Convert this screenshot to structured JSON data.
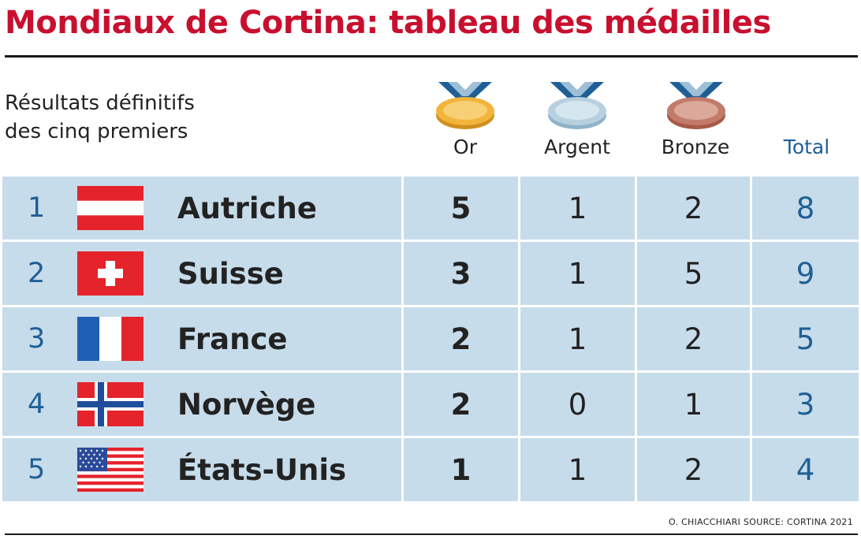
{
  "title": "Mondiaux de Cortina: tableau des médailles",
  "subtitle_lines": [
    "Résultats définitifs",
    "des cinq premiers"
  ],
  "colors": {
    "title": "#c8102e",
    "row_bg": "#c7dcea",
    "accent_blue": "#1f5f96"
  },
  "chart_data": {
    "type": "table",
    "columns": [
      "Or",
      "Argent",
      "Bronze",
      "Total"
    ],
    "rows": [
      {
        "rank": "1",
        "country": "Autriche",
        "flag": "austria-flag",
        "gold": "5",
        "silver": "1",
        "bronze": "2",
        "total": "8"
      },
      {
        "rank": "2",
        "country": "Suisse",
        "flag": "switzerland-flag",
        "gold": "3",
        "silver": "1",
        "bronze": "5",
        "total": "9"
      },
      {
        "rank": "3",
        "country": "France",
        "flag": "france-flag",
        "gold": "2",
        "silver": "1",
        "bronze": "2",
        "total": "5"
      },
      {
        "rank": "4",
        "country": "Norvège",
        "flag": "norway-flag",
        "gold": "2",
        "silver": "0",
        "bronze": "1",
        "total": "3"
      },
      {
        "rank": "5",
        "country": "États-Unis",
        "flag": "usa-flag",
        "gold": "1",
        "silver": "1",
        "bronze": "2",
        "total": "4"
      }
    ]
  },
  "credit": "O. CHIACCHIARI SOURCE: CORTINA 2021"
}
